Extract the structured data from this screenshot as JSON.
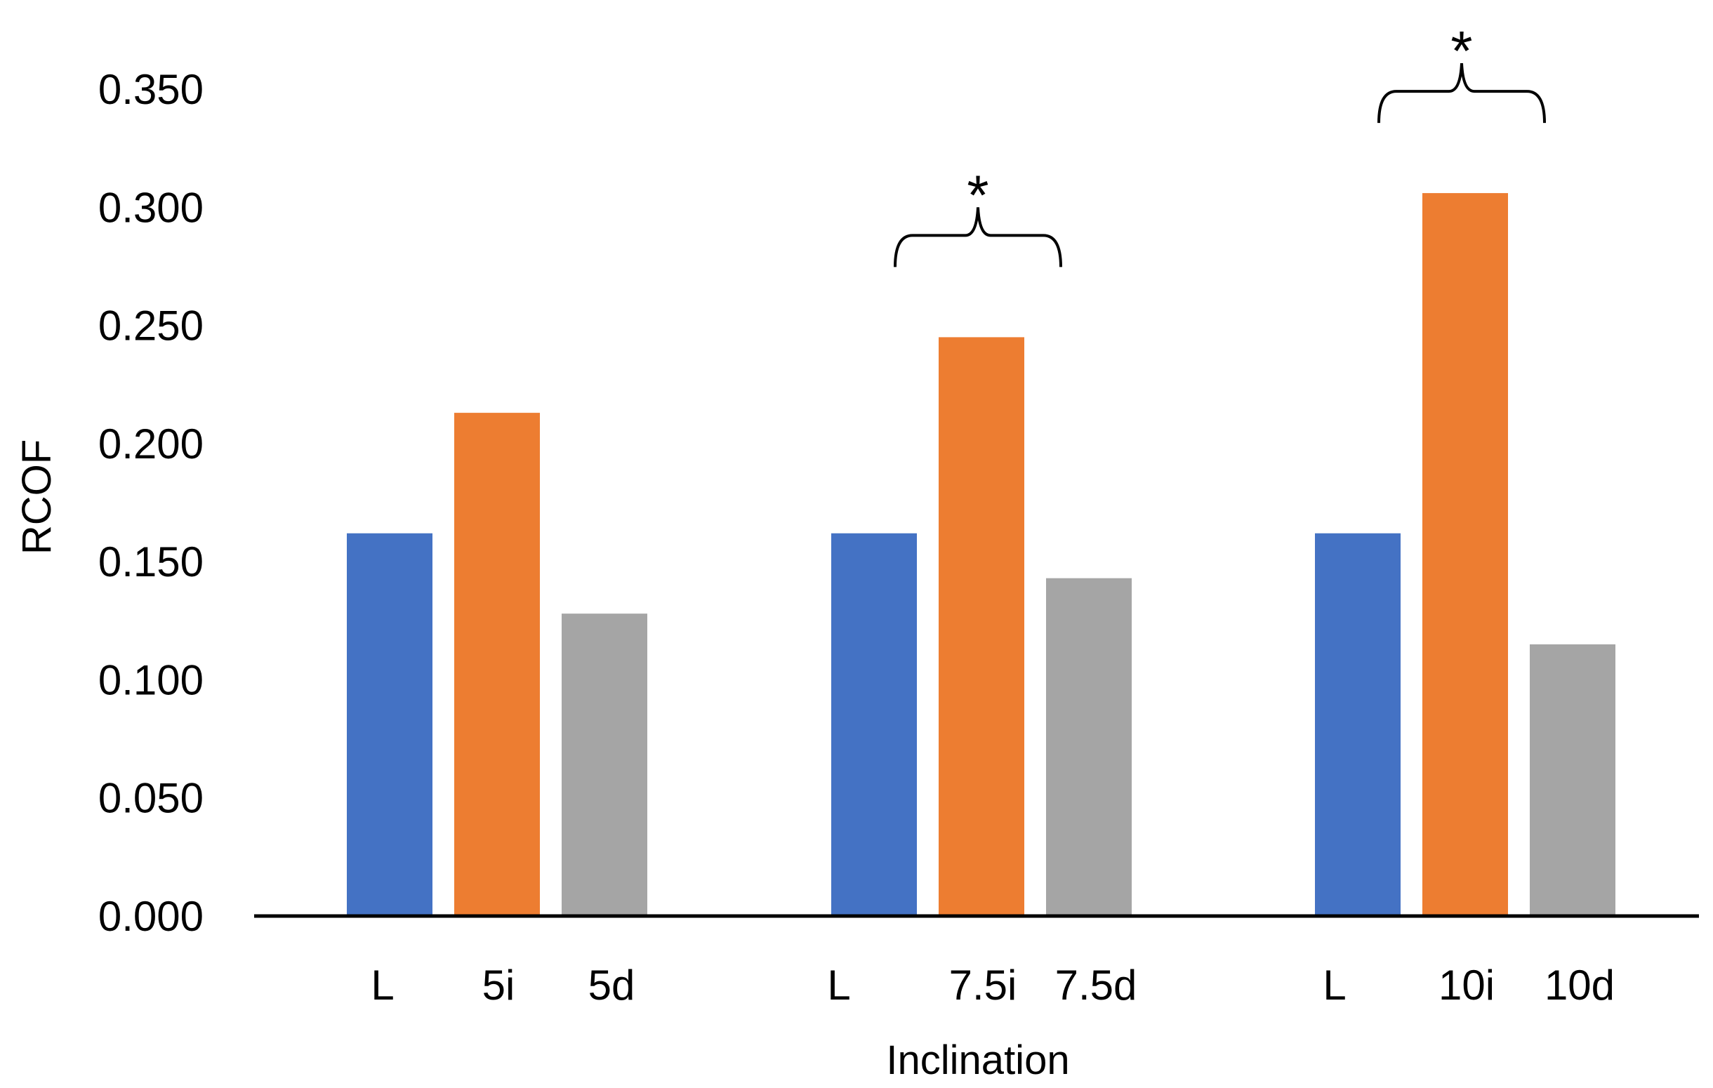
{
  "chart_data": {
    "type": "bar",
    "title": "",
    "xlabel": "Inclination",
    "ylabel": "RCOF",
    "ylim": [
      0,
      0.35
    ],
    "yticks": [
      "0.000",
      "0.050",
      "0.100",
      "0.150",
      "0.200",
      "0.250",
      "0.300",
      "0.350"
    ],
    "grid": false,
    "legend": "none",
    "groups": [
      {
        "bars": [
          {
            "label": "L",
            "value": 0.162,
            "color": "#4472C4"
          },
          {
            "label": "5i",
            "value": 0.213,
            "color": "#ED7D31"
          },
          {
            "label": "5d",
            "value": 0.128,
            "color": "#A5A5A5"
          }
        ],
        "significance": null
      },
      {
        "bars": [
          {
            "label": "L",
            "value": 0.162,
            "color": "#4472C4"
          },
          {
            "label": "7.5i",
            "value": 0.245,
            "color": "#ED7D31"
          },
          {
            "label": "7.5d",
            "value": 0.143,
            "color": "#A5A5A5"
          }
        ],
        "significance": "*"
      },
      {
        "bars": [
          {
            "label": "L",
            "value": 0.162,
            "color": "#4472C4"
          },
          {
            "label": "10i",
            "value": 0.306,
            "color": "#ED7D31"
          },
          {
            "label": "10d",
            "value": 0.115,
            "color": "#A5A5A5"
          }
        ],
        "significance": "*"
      }
    ]
  }
}
